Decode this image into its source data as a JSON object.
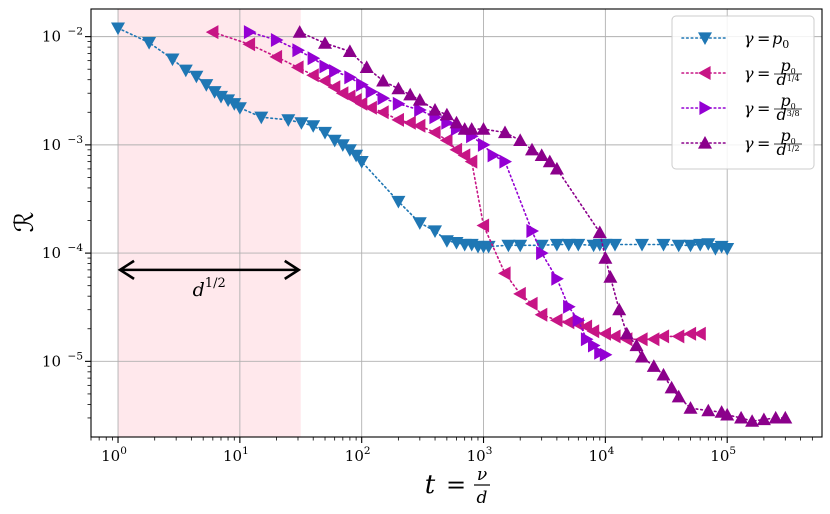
{
  "chart_data": {
    "type": "scatter",
    "xscale": "log",
    "yscale": "log",
    "xlim": [
      0.6,
      600000
    ],
    "ylim": [
      2e-06,
      0.018
    ],
    "grid": true,
    "legend_position": "top-right",
    "xlabel": {
      "lhs": "t",
      "eq": "=",
      "num": "ν",
      "den": "d"
    },
    "ylabel": "ℛ",
    "x_ticks": [
      {
        "value": 1,
        "base": "10",
        "exp": "0"
      },
      {
        "value": 10,
        "base": "10",
        "exp": "1"
      },
      {
        "value": 100,
        "base": "10",
        "exp": "2"
      },
      {
        "value": 1000,
        "base": "10",
        "exp": "3"
      },
      {
        "value": 10000,
        "base": "10",
        "exp": "4"
      },
      {
        "value": 100000,
        "base": "10",
        "exp": "5"
      }
    ],
    "y_ticks": [
      {
        "value": 1e-05,
        "base": "10",
        "exp": "−5"
      },
      {
        "value": 0.0001,
        "base": "10",
        "exp": "−4"
      },
      {
        "value": 0.001,
        "base": "10",
        "exp": "−3"
      },
      {
        "value": 0.01,
        "base": "10",
        "exp": "−2"
      }
    ],
    "shaded_region": {
      "x": [
        1,
        31.6
      ],
      "color": "#ffe8ec"
    },
    "annotation": {
      "x_start": 1,
      "x_end": 31.6,
      "y": 7e-05,
      "text_base": "d",
      "text_exp": "1/2",
      "text_y": 4e-05,
      "text_x": 5.6
    },
    "series": [
      {
        "name": "γ = p0",
        "color": "#1f77b4",
        "marker": "triangle-down",
        "points": [
          [
            1,
            0.012
          ],
          [
            1.8,
            0.0088
          ],
          [
            2.8,
            0.0062
          ],
          [
            3.6,
            0.0049
          ],
          [
            4.4,
            0.0043
          ],
          [
            5.3,
            0.0036
          ],
          [
            6.2,
            0.0031
          ],
          [
            7,
            0.0028
          ],
          [
            8,
            0.0026
          ],
          [
            9,
            0.0024
          ],
          [
            10,
            0.0022
          ],
          [
            15,
            0.0018
          ],
          [
            25,
            0.0017
          ],
          [
            32,
            0.0016
          ],
          [
            40,
            0.0015
          ],
          [
            50,
            0.0013
          ],
          [
            60,
            0.0011
          ],
          [
            70,
            0.001
          ],
          [
            80,
            0.0009
          ],
          [
            90,
            0.0008
          ],
          [
            100,
            0.0007
          ],
          [
            200,
            0.0003
          ],
          [
            300,
            0.00019
          ],
          [
            400,
            0.00016
          ],
          [
            500,
            0.00013
          ],
          [
            600,
            0.000125
          ],
          [
            700,
            0.00012
          ],
          [
            800,
            0.00012
          ],
          [
            900,
            0.000115
          ],
          [
            1000,
            0.000115
          ],
          [
            1100,
            0.000115
          ],
          [
            1600,
            0.000118
          ],
          [
            2000,
            0.000118
          ],
          [
            3000,
            0.000118
          ],
          [
            4000,
            0.00012
          ],
          [
            5000,
            0.00012
          ],
          [
            6000,
            0.00012
          ],
          [
            8000,
            0.000118
          ],
          [
            9000,
            0.00012
          ],
          [
            10000,
            0.00012
          ],
          [
            12000,
            0.00012
          ],
          [
            20000,
            0.00012
          ],
          [
            30000,
            0.00012
          ],
          [
            40000,
            0.000118
          ],
          [
            50000,
            0.000118
          ],
          [
            60000,
            0.00012
          ],
          [
            70000,
            0.000122
          ],
          [
            80000,
            0.00011
          ],
          [
            90000,
            0.000115
          ],
          [
            100000,
            0.00011
          ]
        ]
      },
      {
        "name": "γ = p0 / d^(1/4)",
        "color": "#c71585",
        "marker": "triangle-left",
        "points": [
          [
            6,
            0.011
          ],
          [
            12,
            0.0085
          ],
          [
            20,
            0.0065
          ],
          [
            30,
            0.0052
          ],
          [
            40,
            0.0044
          ],
          [
            50,
            0.0039
          ],
          [
            60,
            0.0034
          ],
          [
            70,
            0.003
          ],
          [
            80,
            0.0028
          ],
          [
            90,
            0.0026
          ],
          [
            100,
            0.0024
          ],
          [
            120,
            0.0022
          ],
          [
            150,
            0.002
          ],
          [
            200,
            0.0017
          ],
          [
            250,
            0.0016
          ],
          [
            300,
            0.0015
          ],
          [
            400,
            0.0013
          ],
          [
            500,
            0.0011
          ],
          [
            600,
            0.0009
          ],
          [
            700,
            0.0008
          ],
          [
            800,
            0.0007
          ],
          [
            1000,
            0.00018
          ],
          [
            1500,
            6.5e-05
          ],
          [
            2000,
            4.2e-05
          ],
          [
            2500,
            3.4e-05
          ],
          [
            3000,
            2.7e-05
          ],
          [
            4000,
            2.4e-05
          ],
          [
            5000,
            2.3e-05
          ],
          [
            6000,
            2.2e-05
          ],
          [
            7000,
            2.1e-05
          ],
          [
            8000,
            1.9e-05
          ],
          [
            10000,
            1.8e-05
          ],
          [
            12000,
            1.7e-05
          ],
          [
            15000,
            1.6e-05
          ],
          [
            20000,
            1.6e-05
          ],
          [
            25000,
            1.6e-05
          ],
          [
            30000,
            1.7e-05
          ],
          [
            40000,
            1.7e-05
          ],
          [
            50000,
            1.8e-05
          ],
          [
            60000,
            1.8e-05
          ]
        ]
      },
      {
        "name": "γ = p0 / d^(3/8)",
        "color": "#9400d3",
        "marker": "triangle-right",
        "points": [
          [
            12,
            0.011
          ],
          [
            20,
            0.0093
          ],
          [
            30,
            0.0075
          ],
          [
            40,
            0.0063
          ],
          [
            50,
            0.0053
          ],
          [
            60,
            0.0048
          ],
          [
            80,
            0.0042
          ],
          [
            100,
            0.0036
          ],
          [
            120,
            0.0031
          ],
          [
            150,
            0.0027
          ],
          [
            200,
            0.0024
          ],
          [
            300,
            0.0021
          ],
          [
            400,
            0.0018
          ],
          [
            500,
            0.0016
          ],
          [
            600,
            0.0014
          ],
          [
            800,
            0.0012
          ],
          [
            1000,
            0.001
          ],
          [
            1200,
            0.0008
          ],
          [
            1500,
            0.0007
          ],
          [
            2500,
            0.00016
          ],
          [
            3000,
            0.0001
          ],
          [
            4000,
            5.8e-05
          ],
          [
            5000,
            3.2e-05
          ],
          [
            6000,
            2.4e-05
          ],
          [
            7000,
            1.6e-05
          ],
          [
            8000,
            1.4e-05
          ],
          [
            9000,
            1.2e-05
          ],
          [
            10000,
            1.15e-05
          ]
        ]
      },
      {
        "name": "γ = p0 / d^(1/2)",
        "color": "#8b008b",
        "marker": "triangle-up",
        "points": [
          [
            31,
            0.011
          ],
          [
            50,
            0.0087
          ],
          [
            80,
            0.0073
          ],
          [
            110,
            0.0052
          ],
          [
            150,
            0.0039
          ],
          [
            200,
            0.0033
          ],
          [
            250,
            0.0029
          ],
          [
            300,
            0.0026
          ],
          [
            400,
            0.0021
          ],
          [
            500,
            0.0019
          ],
          [
            600,
            0.0016
          ],
          [
            700,
            0.0014
          ],
          [
            800,
            0.0014
          ],
          [
            1000,
            0.0014
          ],
          [
            1500,
            0.0013
          ],
          [
            2000,
            0.0011
          ],
          [
            2500,
            0.0009
          ],
          [
            3000,
            0.0008
          ],
          [
            3500,
            0.0007
          ],
          [
            4000,
            0.0006
          ],
          [
            9000,
            0.000155
          ],
          [
            10000,
            9e-05
          ],
          [
            11000,
            6e-05
          ],
          [
            13000,
            3e-05
          ],
          [
            15000,
            1.8e-05
          ],
          [
            18000,
            1.4e-05
          ],
          [
            20000,
            1.1e-05
          ],
          [
            25000,
            9e-06
          ],
          [
            30000,
            7.5e-06
          ],
          [
            35000,
            5.7e-06
          ],
          [
            40000,
            4.7e-06
          ],
          [
            50000,
            3.7e-06
          ],
          [
            70000,
            3.5e-06
          ],
          [
            90000,
            3.4e-06
          ],
          [
            100000,
            3.2e-06
          ],
          [
            130000,
            3e-06
          ],
          [
            160000,
            2.8e-06
          ],
          [
            200000,
            2.9e-06
          ],
          [
            250000,
            3e-06
          ],
          [
            300000,
            3e-06
          ]
        ]
      }
    ]
  },
  "legend": [
    {
      "lhs": "γ",
      "eq": "=",
      "num": "p",
      "num_sub": "0",
      "den": "",
      "den_exp": ""
    },
    {
      "lhs": "γ",
      "eq": "=",
      "num": "p",
      "num_sub": "0",
      "den": "d",
      "den_exp": "1/4"
    },
    {
      "lhs": "γ",
      "eq": "=",
      "num": "p",
      "num_sub": "0",
      "den": "d",
      "den_exp": "3/8"
    },
    {
      "lhs": "γ",
      "eq": "=",
      "num": "p",
      "num_sub": "0",
      "den": "d",
      "den_exp": "1/2"
    }
  ]
}
